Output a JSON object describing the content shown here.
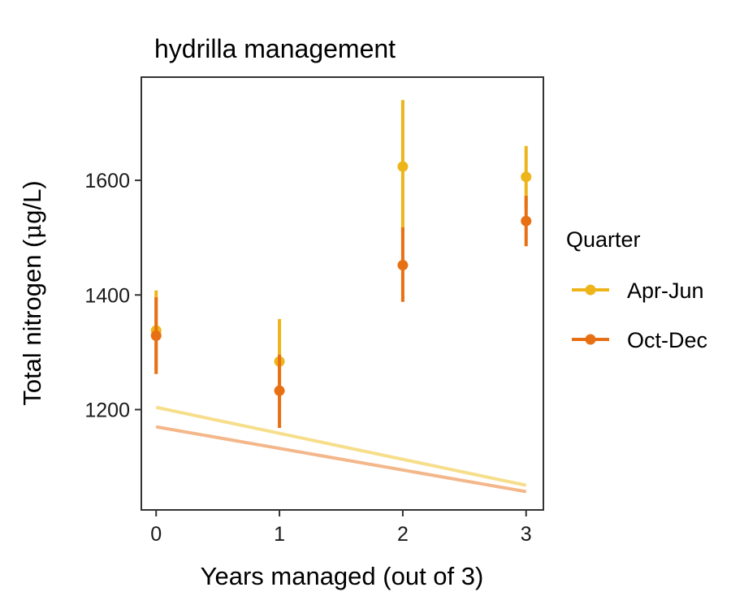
{
  "chart_data": {
    "type": "scatter",
    "title": "hydrilla management",
    "xlabel": "Years managed (out of 3)",
    "ylabel_prefix": "Total nitrogen (",
    "ylabel_mu": "μ",
    "ylabel_suffix": "g/L)",
    "xlim": [
      -0.12,
      3.14
    ],
    "ylim": [
      1025,
      1780
    ],
    "x_ticks": [
      0,
      1,
      2,
      3
    ],
    "y_ticks": [
      1200,
      1400,
      1600
    ],
    "grid": false,
    "legend_position": "right",
    "legend_title": "Quarter",
    "series": [
      {
        "name": "Apr-Jun",
        "color": "#EDB51A",
        "trend_color": "#F6DE8B",
        "points": [
          {
            "x": 0,
            "y": 1338,
            "lo": 1268,
            "hi": 1408
          },
          {
            "x": 1,
            "y": 1284,
            "lo": 1210,
            "hi": 1358
          },
          {
            "x": 2,
            "y": 1624,
            "lo": 1510,
            "hi": 1740
          },
          {
            "x": 3,
            "y": 1606,
            "lo": 1550,
            "hi": 1660
          }
        ],
        "trend": [
          [
            0,
            1204
          ],
          [
            3,
            1068
          ]
        ]
      },
      {
        "name": "Oct-Dec",
        "color": "#E87014",
        "trend_color": "#F3B78A",
        "points": [
          {
            "x": 0,
            "y": 1329,
            "lo": 1262,
            "hi": 1396
          },
          {
            "x": 1,
            "y": 1233,
            "lo": 1168,
            "hi": 1296
          },
          {
            "x": 2,
            "y": 1452,
            "lo": 1388,
            "hi": 1518
          },
          {
            "x": 3,
            "y": 1529,
            "lo": 1485,
            "hi": 1573
          }
        ],
        "trend": [
          [
            0,
            1170
          ],
          [
            3,
            1057
          ]
        ]
      }
    ]
  }
}
